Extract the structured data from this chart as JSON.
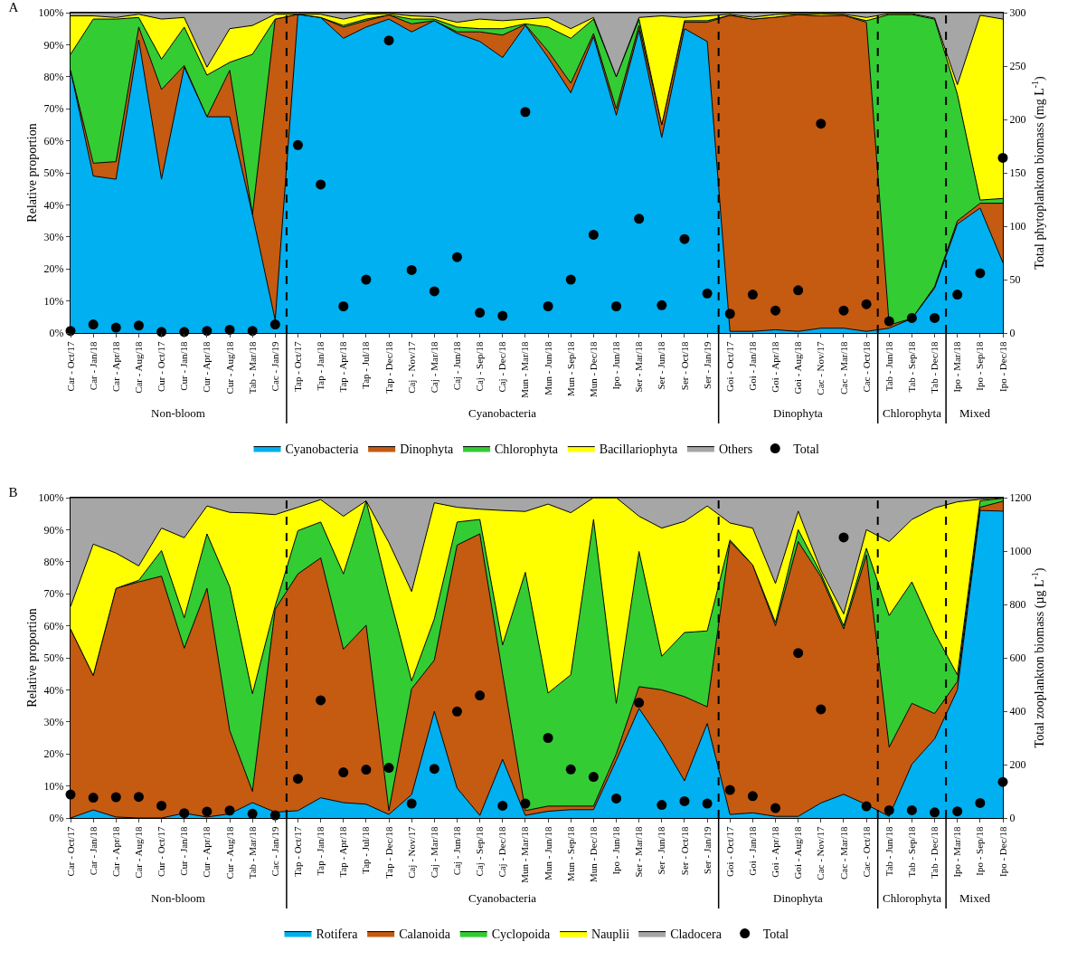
{
  "chart_data": [
    {
      "type": "area",
      "title": "A",
      "ylabel": "Relative proportion",
      "y2label": "Total phytoplankton biomass (mg L$^{-1}$)",
      "categories": [
        "Car - Oct/17",
        "Car - Jan/18",
        "Car - Apr/18",
        "Car - Aug/18",
        "Cur - Oct/17",
        "Cur - Jan/18",
        "Cur - Apr/18",
        "Cur - Aug/18",
        "Tab - Mar/18",
        "Cac - Jan/19",
        "Tap - Oct/17",
        "Tap - Jan/18",
        "Tap - Apr/18",
        "Tap - Jul/18",
        "Tap - Dec/18",
        "Caj - Nov/17",
        "Caj - Mar/18",
        "Caj - Jun/18",
        "Caj - Sep/18",
        "Caj - Dec/18",
        "Mun - Mar/18",
        "Mun - Jun/18",
        "Mun - Sep/18",
        "Mun - Dec/18",
        "Ipo - Jun/18",
        "Ser - Mar/18",
        "Ser - Jun/18",
        "Ser - Oct/18",
        "Ser - Jan/19",
        "Goi - Oct/17",
        "Goi - Jan/18",
        "Goi - Apr/18",
        "Goi - Aug/18",
        "Cac - Nov/17",
        "Cac - Mar/18",
        "Cac - Oct/18",
        "Tab - Jun/18",
        "Tab - Sep/18",
        "Tab - Dec/18",
        "Ipo - Mar/18",
        "Ipo - Sep/18",
        "Ipo - Dec/18"
      ],
      "stacked": true,
      "ylim": [
        0,
        100
      ],
      "yticks": [
        {
          "value": 0,
          "label": "0%"
        },
        {
          "value": 10,
          "label": "10%"
        },
        {
          "value": 20,
          "label": "20%"
        },
        {
          "value": 30,
          "label": "30%"
        },
        {
          "value": 40,
          "label": "40%"
        },
        {
          "value": 50,
          "label": "50%"
        },
        {
          "value": 60,
          "label": "60%"
        },
        {
          "value": 70,
          "label": "70%"
        },
        {
          "value": 80,
          "label": "80%"
        },
        {
          "value": 90,
          "label": "90%"
        },
        {
          "value": 100,
          "label": "100%"
        }
      ],
      "y2lim": [
        0,
        300
      ],
      "y2ticks": [
        0,
        50,
        100,
        150,
        200,
        250,
        300
      ],
      "legend": "bottom",
      "annotations": [
        "Non-bloom",
        "Cyanobacteria",
        "Dinophyta",
        "Chlorophyta",
        "Mixed"
      ],
      "series": [
        {
          "name": "Cyanobacteria",
          "color": "#00b0f0",
          "values": [
            82,
            49,
            48,
            91.5,
            48,
            83,
            67.5,
            67.5,
            37,
            4,
            99.5,
            98.5,
            92,
            95.5,
            98,
            94,
            97.5,
            93.5,
            91,
            86,
            96,
            86,
            75,
            92.5,
            68,
            94.5,
            61,
            95,
            91,
            0.5,
            0.5,
            1,
            0.5,
            1.5,
            1.5,
            0.5,
            1.5,
            4.5,
            14,
            34,
            39,
            22
          ]
        },
        {
          "name": "Dinophyta",
          "color": "#c55a11",
          "values": [
            0,
            4,
            5.5,
            4,
            28,
            0.5,
            0,
            14.5,
            0,
            94,
            0,
            0,
            3.5,
            2,
            1.3,
            2.5,
            0,
            0.5,
            3,
            7,
            0.3,
            2,
            3,
            1,
            2,
            1.5,
            4,
            2,
            6,
            98.7,
            97.5,
            97.6,
            98.9,
            97.5,
            97.7,
            96.5,
            1,
            0,
            0.5,
            1,
            1.5,
            18.5
          ]
        },
        {
          "name": "Chlorophyta",
          "color": "#33cc33",
          "values": [
            5,
            45,
            44.5,
            3,
            9.5,
            12,
            13,
            2.5,
            50,
            0,
            0,
            0,
            0.5,
            0.5,
            0,
            1.5,
            0.5,
            1.5,
            1,
            2,
            0.2,
            7.5,
            14,
            4.5,
            10,
            2,
            0,
            0.5,
            0.5,
            0,
            0,
            0,
            0,
            0,
            0,
            0.5,
            96.9,
            94.9,
            83.5,
            39.5,
            1,
            1.5
          ]
        },
        {
          "name": "Bacillariophyta",
          "color": "#ffff00",
          "values": [
            12,
            1,
            0.5,
            1,
            12.5,
            3,
            2.5,
            10.5,
            9,
            1.5,
            0,
            1,
            2,
            1.5,
            0.4,
            1,
            0.7,
            1.5,
            3,
            2.5,
            1.5,
            3,
            3,
            0.5,
            0,
            0.5,
            34,
            1,
            1.5,
            0.3,
            0.6,
            0.8,
            0.3,
            0.6,
            0.3,
            1,
            0.3,
            0.3,
            0.3,
            3,
            57.7,
            56
          ]
        },
        {
          "name": "Others",
          "color": "#a6a6a6",
          "values": [
            1,
            1,
            1.5,
            0.5,
            2,
            1.5,
            17,
            5,
            4,
            0.5,
            0.5,
            0.5,
            2,
            0.5,
            0.3,
            1,
            1.3,
            3,
            2,
            2.5,
            2,
            1.5,
            5,
            1.5,
            20,
            1.5,
            1,
            1.5,
            1,
            0.5,
            1.4,
            0.6,
            0.3,
            0.4,
            0.5,
            1.5,
            0.3,
            0.3,
            1.7,
            22.5,
            0.8,
            2
          ]
        },
        {
          "name": "Total",
          "type": "scatter",
          "axis": "y2",
          "marker": "circle",
          "color": "#000000",
          "values": [
            2,
            8,
            5,
            7,
            1,
            1,
            2,
            3,
            2,
            8,
            176,
            139,
            25,
            50,
            274,
            59,
            39,
            71,
            19,
            16,
            207,
            25,
            50,
            92,
            25,
            107,
            26,
            88,
            37,
            18,
            36,
            21,
            40,
            196,
            21,
            27,
            11,
            14,
            14,
            36,
            56,
            164
          ]
        }
      ]
    },
    {
      "type": "area",
      "title": "B",
      "ylabel": "Relative proportion",
      "y2label": "Total zooplankton biomass (µg L$^{-1}$)",
      "categories": [
        "Car - Oct/17",
        "Car - Jan/18",
        "Car - Apr/18",
        "Car - Aug/18",
        "Cur - Oct/17",
        "Cur - Jan/18",
        "Cur - Apr/18",
        "Cur - Aug/18",
        "Tab - Mar/18",
        "Cac - Jan/19",
        "Tap - Oct/17",
        "Tap - Jan/18",
        "Tap - Apr/18",
        "Tap - Jul/18",
        "Tap - Dec/18",
        "Caj - Nov/17",
        "Caj - Mar/18",
        "Caj - Jun/18",
        "Caj - Sep/18",
        "Caj - Dec/18",
        "Mun - Mar/18",
        "Mun - Jun/18",
        "Mun - Sep/18",
        "Mun - Dec/18",
        "Ipo - Jun/18",
        "Ser - Mar/18",
        "Ser - Jun/18",
        "Ser - Oct/18",
        "Ser - Jan/19",
        "Goi - Oct/17",
        "Goi - Jan/18",
        "Goi - Apr/18",
        "Goi - Aug/18",
        "Cac - Nov/17",
        "Cac - Mar/18",
        "Cac - Oct/18",
        "Tab - Jun/18",
        "Tab - Sep/18",
        "Tab - Dec/18",
        "Ipo - Mar/18",
        "Ipo - Sep/18",
        "Ipo - Dec/18"
      ],
      "stacked": true,
      "ylim": [
        0,
        100
      ],
      "yticks": [
        {
          "value": 0,
          "label": "0%"
        },
        {
          "value": 10,
          "label": "10%"
        },
        {
          "value": 20,
          "label": "20%"
        },
        {
          "value": 30,
          "label": "30%"
        },
        {
          "value": 40,
          "label": "40%"
        },
        {
          "value": 50,
          "label": "50%"
        },
        {
          "value": 60,
          "label": "60%"
        },
        {
          "value": 70,
          "label": "70%"
        },
        {
          "value": 80,
          "label": "80%"
        },
        {
          "value": 90,
          "label": "90%"
        },
        {
          "value": 100,
          "label": "100%"
        }
      ],
      "y2lim": [
        0,
        1200
      ],
      "y2ticks": [
        0,
        200,
        400,
        600,
        800,
        1000,
        1200
      ],
      "legend": "bottom",
      "annotations": [
        "Non-bloom",
        "Cyanobacteria",
        "Dinophyta",
        "Chlorophyta",
        "Mixed"
      ],
      "series": [
        {
          "name": "Rotifera",
          "color": "#00b0f0",
          "values": [
            0,
            2.5,
            0.3,
            0,
            0,
            1.5,
            0.3,
            1.3,
            4.8,
            1.8,
            2.3,
            6.3,
            4.8,
            4.3,
            1.1,
            7.3,
            33.3,
            9.3,
            0.8,
            18.3,
            0.8,
            2.1,
            2.6,
            2.6,
            18,
            34.2,
            23.7,
            11.6,
            29.5,
            1.1,
            1.6,
            0.5,
            0.5,
            4.7,
            7.4,
            4.2,
            0.5,
            16.8,
            24.7,
            40,
            96,
            95.8
          ]
        },
        {
          "name": "Calanoida",
          "color": "#c55a11",
          "values": [
            59,
            42,
            71.4,
            73.7,
            75.5,
            51.5,
            71.4,
            26,
            3.5,
            63.4,
            73.9,
            74.9,
            47.9,
            55.9,
            1.2,
            33,
            16,
            75.9,
            87.9,
            26.7,
            1.5,
            1.6,
            1.1,
            1.1,
            2,
            6.8,
            16.3,
            26.3,
            5.2,
            85.2,
            77.4,
            59.5,
            85.8,
            70.6,
            51.6,
            77.9,
            21.6,
            19,
            7.9,
            2.6,
            1,
            3.1
          ]
        },
        {
          "name": "Cyclopoida",
          "color": "#33cc33",
          "values": [
            0,
            0,
            0,
            0.5,
            8,
            9.5,
            17,
            44.9,
            30.5,
            1,
            13.5,
            11.2,
            23.5,
            38.8,
            67.7,
            2.5,
            12.9,
            7.2,
            4.5,
            9,
            74.4,
            35.3,
            41,
            89.5,
            15.8,
            42.2,
            10.5,
            20,
            23.7,
            0.5,
            0,
            1,
            3.7,
            1,
            1,
            2.1,
            41.1,
            37.9,
            25.3,
            2.1,
            2,
            0.9
          ]
        },
        {
          "name": "Nauplii",
          "color": "#ffff00",
          "values": [
            7,
            41,
            11,
            4.5,
            7,
            25,
            8.7,
            23.2,
            56.4,
            28.5,
            7.3,
            7,
            18,
            0,
            16,
            27.9,
            36.2,
            4.6,
            3.2,
            42,
            19,
            59,
            50.6,
            6.8,
            64.2,
            11,
            40,
            34.7,
            39,
            5.3,
            11.5,
            12.2,
            5.8,
            1.1,
            3.7,
            5.8,
            23.1,
            19.5,
            38.9,
            54,
            0.5,
            0.2
          ]
        },
        {
          "name": "Cladocera",
          "color": "#a6a6a6",
          "values": [
            34,
            14.5,
            17.3,
            21.3,
            9.5,
            12.5,
            2.6,
            4.6,
            4.8,
            5.3,
            3,
            0.6,
            5.8,
            1,
            14,
            29.3,
            1.6,
            3,
            3.6,
            4,
            4.3,
            2,
            4.7,
            0,
            0,
            5.8,
            9.5,
            7.4,
            2.6,
            7.9,
            9.5,
            26.8,
            4.2,
            22.6,
            36.3,
            10,
            13.7,
            6.8,
            3.2,
            1.3,
            0.5,
            0
          ]
        },
        {
          "name": "Total",
          "type": "scatter",
          "axis": "y2",
          "marker": "circle",
          "color": "#000000",
          "values": [
            88,
            76,
            78,
            79,
            46,
            18,
            24,
            28,
            16,
            10,
            147,
            441,
            171,
            181,
            188,
            54,
            184,
            399,
            459,
            46,
            54,
            300,
            182,
            154,
            73,
            432,
            49,
            63,
            54,
            105,
            82,
            37,
            618,
            407,
            1051,
            44,
            29,
            29,
            21,
            25,
            56,
            135
          ]
        }
      ]
    }
  ]
}
